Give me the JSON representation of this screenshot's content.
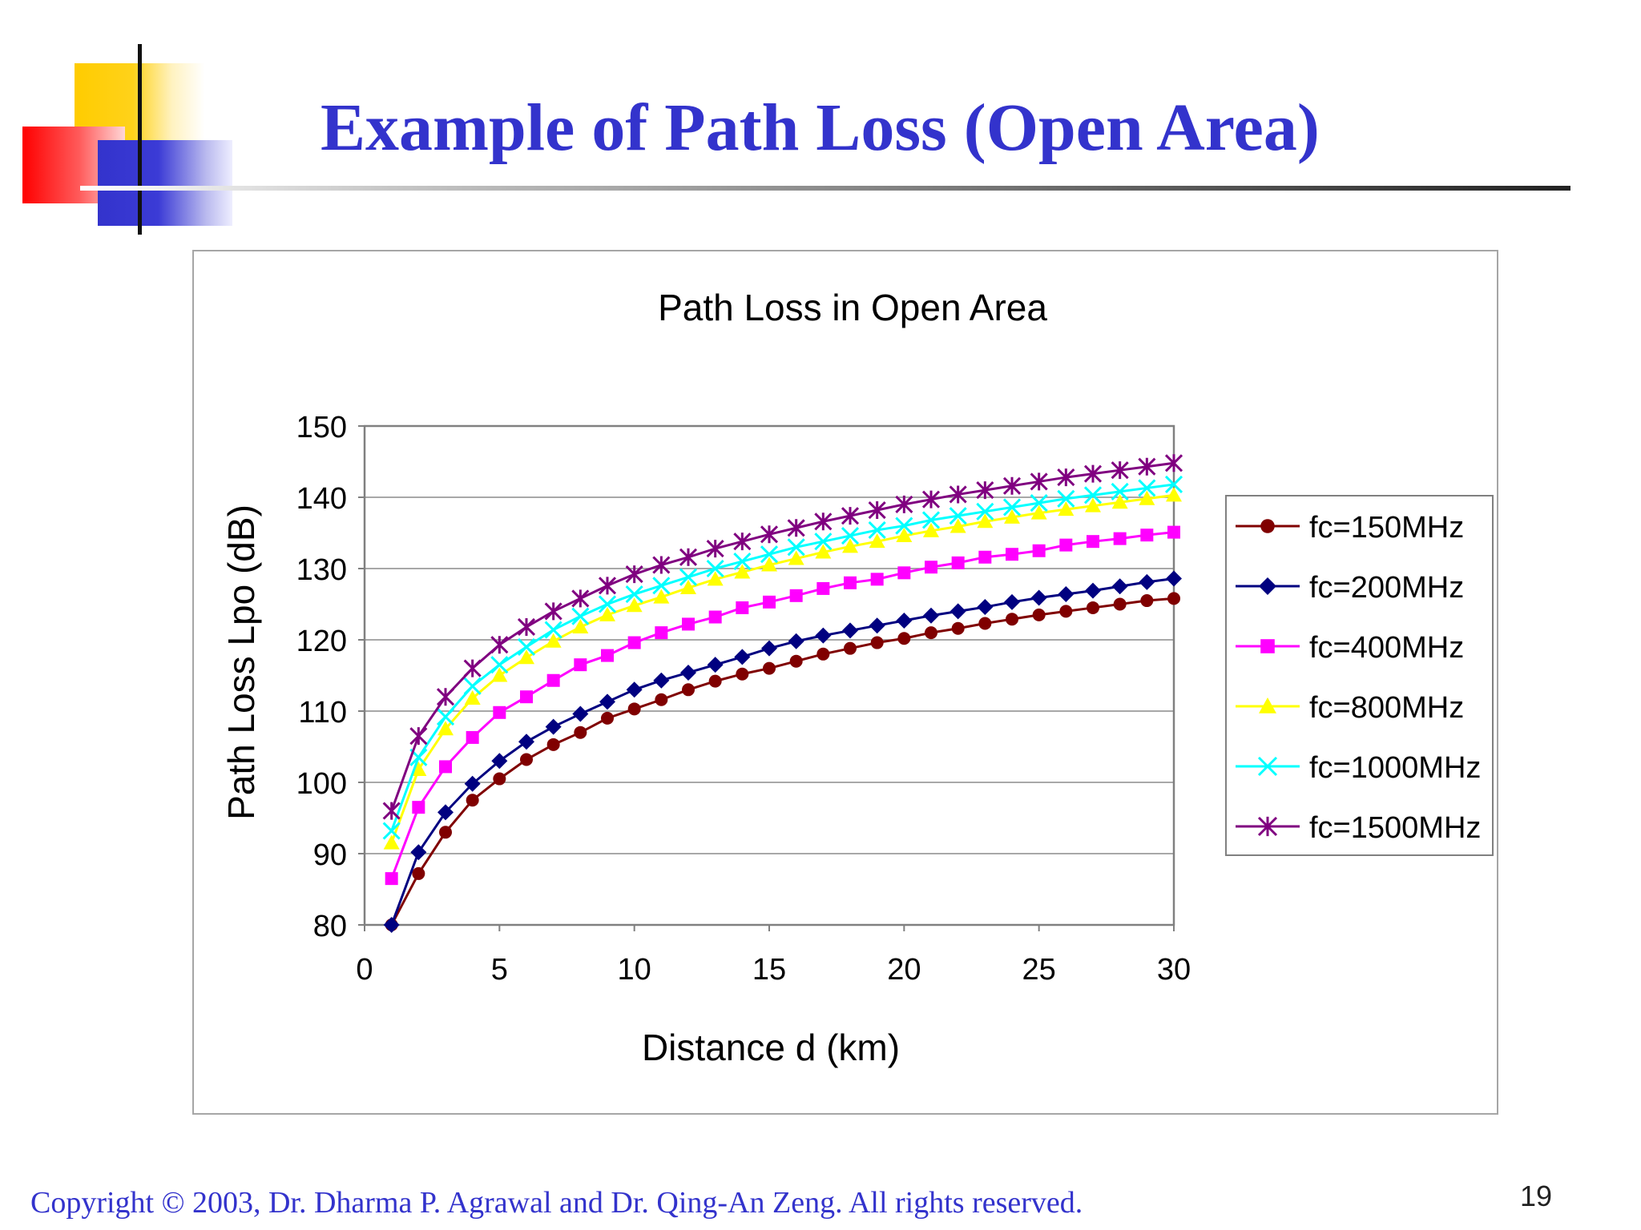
{
  "slide": {
    "title": "Example of Path Loss (Open Area)",
    "footer": "Copyright © 2003, Dr. Dharma P. Agrawal and Dr. Qing-An Zeng. All rights reserved.",
    "page_number": "19"
  },
  "colors": {
    "title": "#3333cc",
    "footer": "#3333cc",
    "deco_yellow": "#ffcc00",
    "deco_red": "#ff0000",
    "deco_blue": "#3333cc"
  },
  "chart_data": {
    "type": "line",
    "title": "Path Loss in Open Area",
    "xlabel": "Distance d (km)",
    "ylabel": "Path Loss Lpo (dB)",
    "xlim": [
      0,
      30
    ],
    "ylim": [
      80,
      150
    ],
    "xticks": [
      0,
      5,
      10,
      15,
      20,
      25,
      30
    ],
    "yticks": [
      80,
      90,
      100,
      110,
      120,
      130,
      140,
      150
    ],
    "grid": "horizontal",
    "legend_position": "right",
    "x": [
      1,
      2,
      3,
      4,
      5,
      6,
      7,
      8,
      9,
      10,
      11,
      12,
      13,
      14,
      15,
      16,
      17,
      18,
      19,
      20,
      21,
      22,
      23,
      24,
      25,
      26,
      27,
      28,
      29,
      30
    ],
    "series": [
      {
        "name": "fc=150MHz",
        "color": "#800000",
        "marker": "circle",
        "values": [
          79.5,
          87.2,
          93.0,
          97.5,
          100.5,
          103.2,
          105.3,
          107.0,
          109.0,
          110.3,
          111.6,
          113.0,
          114.2,
          115.2,
          116.0,
          117.0,
          118.0,
          118.8,
          119.6,
          120.2,
          121.0,
          121.6,
          122.3,
          122.9,
          123.5,
          124.0,
          124.5,
          125.0,
          125.5,
          125.8
        ]
      },
      {
        "name": "fc=200MHz",
        "color": "#000080",
        "marker": "diamond",
        "values": [
          79.8,
          90.2,
          95.8,
          99.8,
          103.0,
          105.7,
          107.8,
          109.6,
          111.3,
          113.0,
          114.3,
          115.4,
          116.5,
          117.6,
          118.8,
          119.8,
          120.6,
          121.3,
          122.0,
          122.7,
          123.4,
          124.0,
          124.6,
          125.3,
          125.9,
          126.4,
          126.9,
          127.5,
          128.1,
          128.6
        ]
      },
      {
        "name": "fc=400MHz",
        "color": "#ff00ff",
        "marker": "square",
        "values": [
          86.5,
          96.5,
          102.2,
          106.3,
          109.8,
          112.0,
          114.3,
          116.5,
          117.8,
          119.6,
          121.0,
          122.2,
          123.2,
          124.5,
          125.3,
          126.2,
          127.2,
          128.0,
          128.5,
          129.4,
          130.2,
          130.8,
          131.6,
          132.0,
          132.5,
          133.3,
          133.8,
          134.2,
          134.7,
          135.1
        ]
      },
      {
        "name": "fc=800MHz",
        "color": "#ffff00",
        "marker": "triangle",
        "values": [
          91.5,
          101.8,
          107.5,
          111.8,
          115.0,
          117.5,
          119.8,
          121.8,
          123.5,
          124.8,
          126.0,
          127.3,
          128.5,
          129.5,
          130.5,
          131.4,
          132.3,
          133.1,
          133.8,
          134.6,
          135.3,
          135.9,
          136.6,
          137.2,
          137.8,
          138.3,
          138.8,
          139.3,
          139.8,
          140.3
        ]
      },
      {
        "name": "fc=1000MHz",
        "color": "#00ffff",
        "marker": "x",
        "values": [
          93.2,
          103.5,
          109.2,
          113.5,
          116.5,
          119.0,
          121.4,
          123.3,
          125.0,
          126.4,
          127.6,
          128.8,
          130.0,
          131.0,
          132.0,
          133.0,
          133.8,
          134.6,
          135.4,
          136.0,
          136.8,
          137.4,
          138.0,
          138.6,
          139.2,
          139.8,
          140.3,
          140.8,
          141.3,
          141.8
        ]
      },
      {
        "name": "fc=1500MHz",
        "color": "#800080",
        "marker": "star",
        "values": [
          96.0,
          106.5,
          112.0,
          116.0,
          119.3,
          121.8,
          124.0,
          125.8,
          127.6,
          129.2,
          130.5,
          131.6,
          132.8,
          133.8,
          134.8,
          135.7,
          136.6,
          137.4,
          138.2,
          139.0,
          139.7,
          140.4,
          141.0,
          141.6,
          142.2,
          142.8,
          143.3,
          143.8,
          144.3,
          144.8
        ]
      }
    ]
  }
}
